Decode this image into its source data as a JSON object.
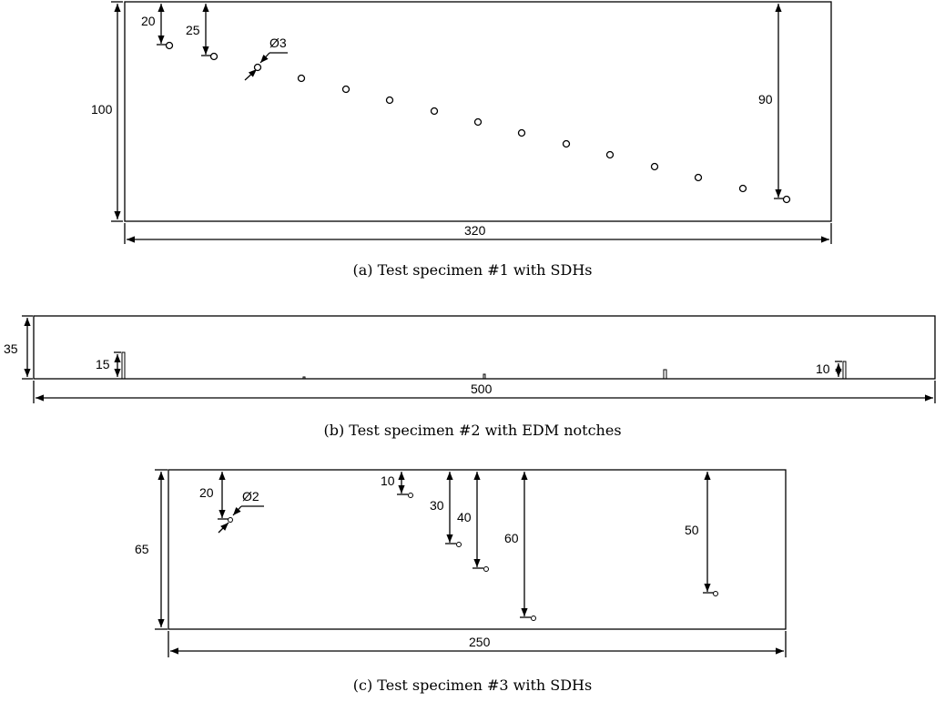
{
  "panel_a": {
    "height_label": "100",
    "width_label": "320",
    "depth_first_label": "20",
    "depth_second_label": "25",
    "depth_last_label": "90",
    "hole_diameter_label": "Ø3",
    "caption": "(a) Test specimen #1 with SDHs"
  },
  "panel_b": {
    "height_label": "35",
    "width_label": "500",
    "notch_left_label": "15",
    "notch_right_label": "10",
    "caption": "(b) Test specimen #2 with EDM notches"
  },
  "panel_c": {
    "height_label": "65",
    "width_label": "250",
    "hole_diameter_label": "Ø2",
    "depth_labels": [
      "20",
      "10",
      "30",
      "40",
      "60",
      "50"
    ],
    "caption": "(c) Test specimen #3 with SDHs"
  }
}
